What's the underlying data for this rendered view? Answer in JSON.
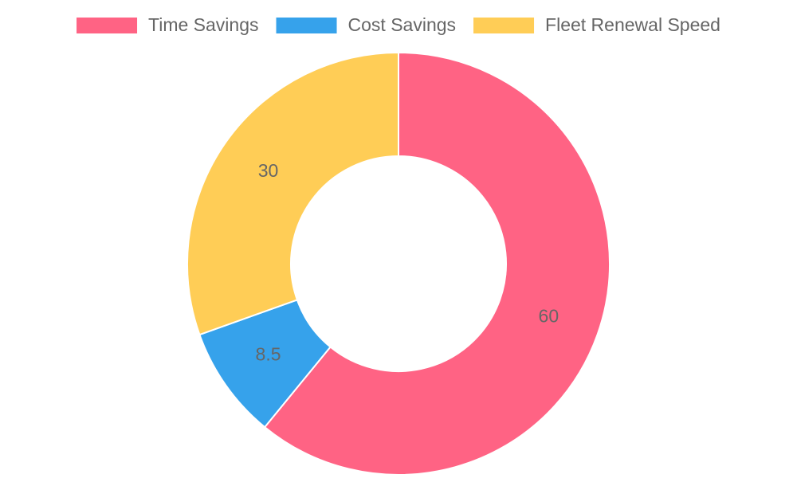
{
  "chart_data": {
    "type": "doughnut",
    "categories": [
      "Time Savings",
      "Cost Savings",
      "Fleet Renewal Speed"
    ],
    "values": [
      60,
      8.5,
      30
    ],
    "colors": [
      "#ff6384",
      "#36a2eb",
      "#ffcd56"
    ],
    "legend": "top"
  }
}
